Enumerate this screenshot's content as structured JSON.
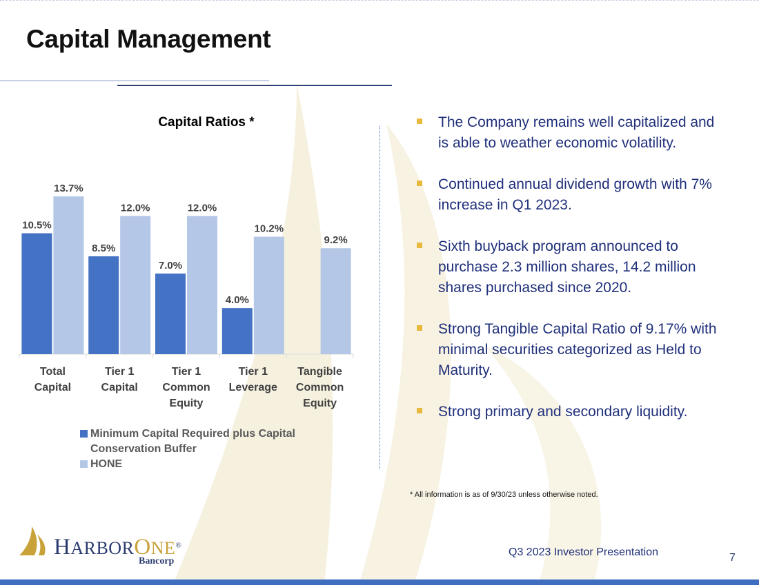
{
  "slide": {
    "title": "Capital Management",
    "footer_text": "Q3 2023 Investor Presentation",
    "page_number": "7",
    "footnote": "* All information is as of 9/30/23 unless otherwise noted."
  },
  "bullets": [
    "The Company remains well capitalized and is able to weather economic volatility.",
    "Continued  annual dividend growth with 7% increase in Q1 2023.",
    "Sixth buyback program announced to purchase 2.3 million shares, 14.2 million shares purchased since 2020.",
    "Strong Tangible Capital Ratio of 9.17% with minimal securities categorized as Held to Maturity.",
    "Strong primary and secondary liquidity."
  ],
  "logo": {
    "name_h": "H",
    "name_arbor": "ARBOR",
    "name_o": "O",
    "name_ne": "NE",
    "registered": "®",
    "sub": "Bancorp"
  },
  "colors": {
    "series_min": "#4472c4",
    "series_hone": "#b4c7e7",
    "bullet_text": "#1f2f7a",
    "bullet_marker": "#e8b93c",
    "bottom_bar": "#3f6dbf"
  },
  "chart_data": {
    "type": "bar",
    "title": "Capital Ratios *",
    "categories": [
      [
        "Total",
        "Capital"
      ],
      [
        "Tier 1",
        "Capital"
      ],
      [
        "Tier 1",
        "Common",
        "Equity"
      ],
      [
        "Tier 1",
        "Leverage"
      ],
      [
        "Tangible",
        "Common",
        "Equity"
      ]
    ],
    "series": [
      {
        "name": "Minimum Capital Required plus Capital Conservation Buffer",
        "values": [
          10.5,
          8.5,
          7.0,
          4.0,
          null
        ],
        "labels": [
          "10.5%",
          "8.5%",
          "7.0%",
          "4.0%",
          null
        ]
      },
      {
        "name": "HONE",
        "values": [
          13.7,
          12.0,
          12.0,
          10.2,
          9.2
        ],
        "labels": [
          "13.7%",
          "12.0%",
          "12.0%",
          "10.2%",
          "9.2%"
        ]
      }
    ],
    "ylim": [
      0,
      14.0
    ],
    "grid": false,
    "legend_position": "bottom-left"
  }
}
